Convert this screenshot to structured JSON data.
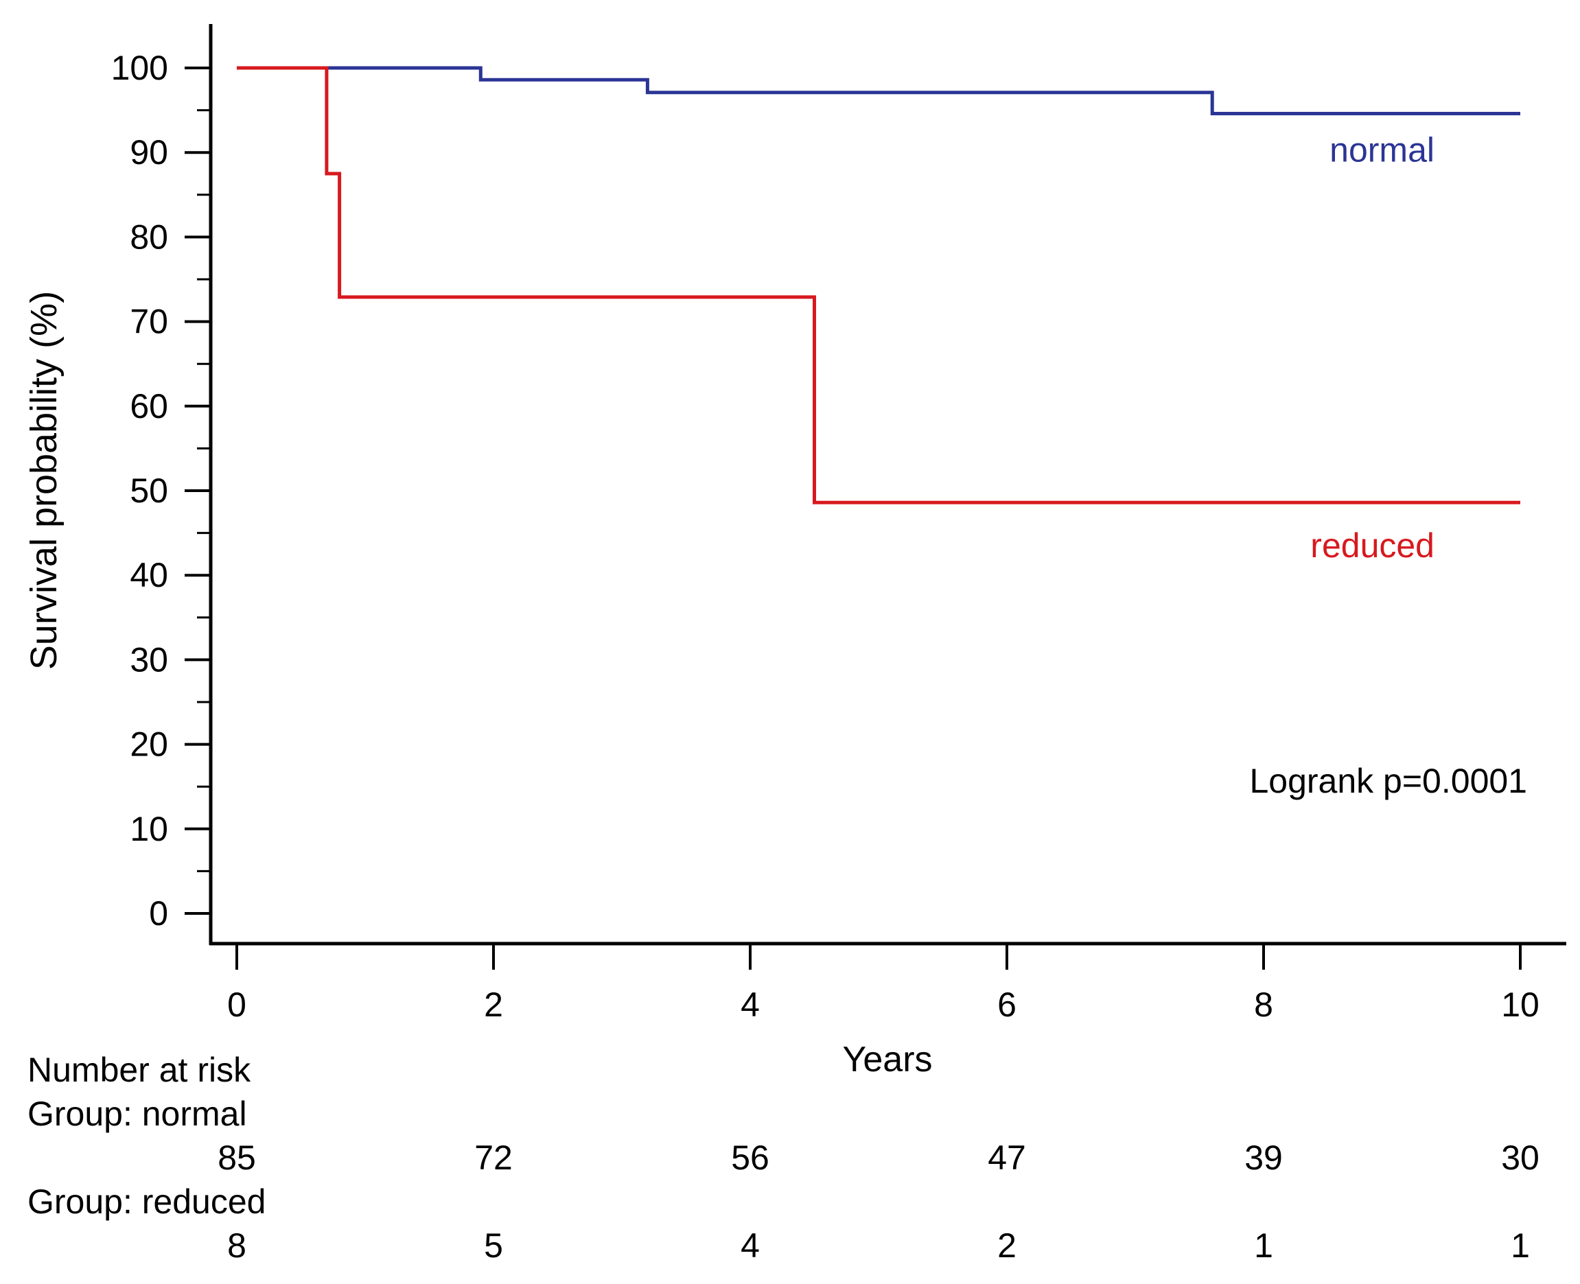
{
  "chart_data": {
    "type": "line",
    "subtype": "kaplan-meier step",
    "xlabel": "Years",
    "ylabel": "Survival probability (%)",
    "xlim": [
      0,
      10
    ],
    "ylim": [
      0,
      100
    ],
    "x_ticks": [
      0,
      2,
      4,
      6,
      8,
      10
    ],
    "y_ticks": [
      0,
      10,
      20,
      30,
      40,
      50,
      60,
      70,
      80,
      90,
      100
    ],
    "y_minor_ticks": [
      5,
      15,
      25,
      35,
      45,
      55,
      65,
      75,
      85,
      95
    ],
    "grid": false,
    "annotation": "Logrank p=0.0001",
    "series": [
      {
        "name": "normal",
        "color": "#2b3595",
        "steps": [
          {
            "x": 0,
            "y": 100
          },
          {
            "x": 1.9,
            "y": 98.6
          },
          {
            "x": 3.2,
            "y": 97.1
          },
          {
            "x": 7.6,
            "y": 94.6
          }
        ],
        "x_end": 10
      },
      {
        "name": "reduced",
        "color": "#d7191f",
        "steps": [
          {
            "x": 0,
            "y": 100
          },
          {
            "x": 0.7,
            "y": 87.5
          },
          {
            "x": 0.8,
            "y": 72.9
          },
          {
            "x": 4.5,
            "y": 48.6
          }
        ],
        "x_end": 10
      }
    ],
    "risk_table": {
      "title": "Number at risk",
      "times": [
        0,
        2,
        4,
        6,
        8,
        10
      ],
      "groups": [
        {
          "label": "Group: normal",
          "counts": [
            85,
            72,
            56,
            47,
            39,
            30
          ]
        },
        {
          "label": "Group: reduced",
          "counts": [
            8,
            5,
            4,
            2,
            1,
            1
          ]
        }
      ]
    }
  }
}
